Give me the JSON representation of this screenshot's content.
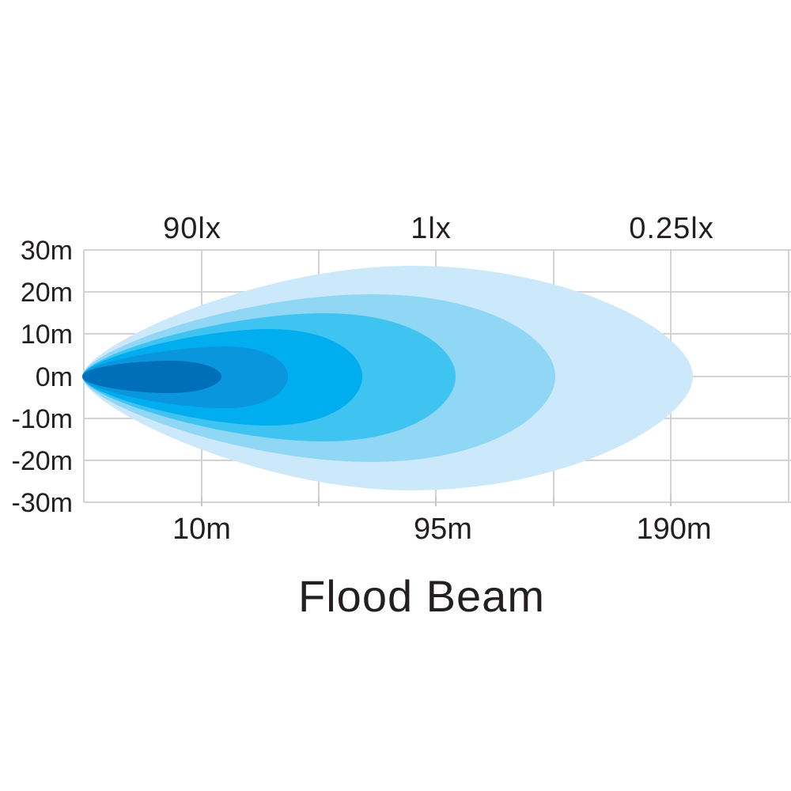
{
  "title": "Flood Beam",
  "lux_labels": [
    "90lx",
    "1lx",
    "0.25lx"
  ],
  "y_labels": [
    "30m",
    "20m",
    "10m",
    "0m",
    "-10m",
    "-20m",
    "-30m"
  ],
  "x_labels": [
    "10m",
    "95m",
    "190m"
  ],
  "zone_colors": [
    "#cbe9fa",
    "#90d6f5",
    "#3fc3f1",
    "#00adee",
    "#0a96dc",
    "#006fba"
  ]
}
